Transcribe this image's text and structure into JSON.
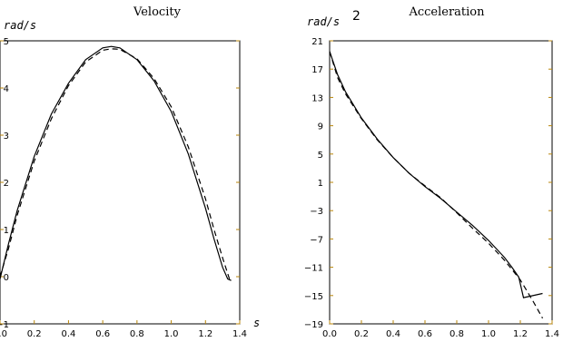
{
  "chart_data": [
    {
      "type": "line",
      "title": "Velocity",
      "ylabel": "rad/s",
      "xlabel": "s",
      "xlim": [
        0,
        1.4
      ],
      "ylim": [
        -1,
        5
      ],
      "x_ticks": [
        "0.0",
        "0.2",
        "0.4",
        "0.6",
        "0.8",
        "1.0",
        "1.2",
        "1.4"
      ],
      "y_ticks": [
        "5",
        "4",
        "3",
        "2",
        "1",
        "0",
        "−1"
      ],
      "grid": false,
      "series": [
        {
          "style": "solid",
          "x": [
            0,
            0.05,
            0.1,
            0.2,
            0.3,
            0.4,
            0.5,
            0.6,
            0.65,
            0.7,
            0.8,
            0.9,
            1.0,
            1.1,
            1.2,
            1.25,
            1.3,
            1.33,
            1.35
          ],
          "y": [
            -0.05,
            0.7,
            1.4,
            2.55,
            3.45,
            4.1,
            4.6,
            4.85,
            4.88,
            4.85,
            4.6,
            4.15,
            3.5,
            2.6,
            1.45,
            0.8,
            0.2,
            -0.05,
            -0.08
          ]
        },
        {
          "style": "dashed",
          "x": [
            0,
            0.05,
            0.1,
            0.2,
            0.3,
            0.4,
            0.5,
            0.6,
            0.65,
            0.7,
            0.8,
            0.9,
            1.0,
            1.1,
            1.2,
            1.25,
            1.3,
            1.34
          ],
          "y": [
            0.0,
            0.6,
            1.3,
            2.45,
            3.35,
            4.05,
            4.55,
            4.8,
            4.83,
            4.82,
            4.62,
            4.2,
            3.6,
            2.75,
            1.65,
            1.0,
            0.4,
            -0.05
          ]
        }
      ]
    },
    {
      "type": "line",
      "title": "Acceleration",
      "ylabel": "rad/s",
      "ylabel_exp": "2",
      "xlim": [
        0,
        1.4
      ],
      "ylim": [
        -19,
        21
      ],
      "x_ticks": [
        "0.0",
        "0.2",
        "0.4",
        "0.6",
        "0.8",
        "1.0",
        "1.2",
        "1.4"
      ],
      "y_ticks": [
        "21",
        "17",
        "13",
        "9",
        "5",
        "1",
        "−3",
        "−7",
        "−11",
        "−15",
        "−19"
      ],
      "grid": false,
      "series": [
        {
          "style": "solid",
          "x": [
            0,
            0.05,
            0.1,
            0.2,
            0.3,
            0.4,
            0.5,
            0.6,
            0.7,
            0.8,
            0.9,
            1.0,
            1.1,
            1.15,
            1.19,
            1.22,
            1.34
          ],
          "y": [
            19.5,
            16.2,
            13.8,
            10.1,
            7.1,
            4.5,
            2.3,
            0.4,
            -1.3,
            -3.2,
            -5.1,
            -7.2,
            -9.6,
            -11.1,
            -12.4,
            -15.3,
            -14.7
          ]
        },
        {
          "style": "dashed",
          "x": [
            0,
            0.05,
            0.1,
            0.2,
            0.3,
            0.4,
            0.5,
            0.6,
            0.7,
            0.8,
            0.9,
            1.0,
            1.1,
            1.2,
            1.28,
            1.34
          ],
          "y": [
            19.5,
            15.8,
            13.5,
            10.0,
            7.0,
            4.5,
            2.3,
            0.5,
            -1.2,
            -3.3,
            -5.5,
            -7.6,
            -10.0,
            -12.8,
            -15.8,
            -18.2
          ]
        }
      ]
    }
  ]
}
